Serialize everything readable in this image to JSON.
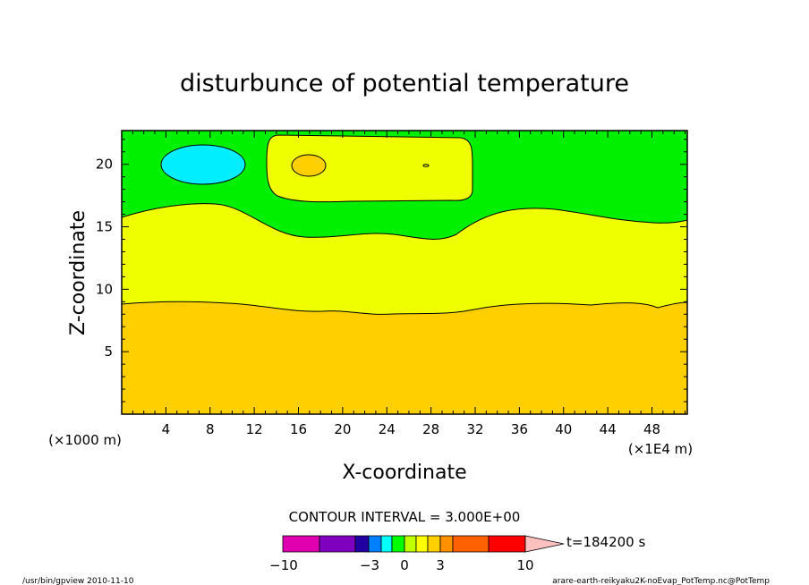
{
  "chart_data": {
    "type": "contour",
    "title": "disturbunce of potential temperature",
    "xlabel": "X-coordinate",
    "ylabel": "Z-coordinate",
    "x_unit_left": "(×1000 m)",
    "x_unit_right": "(×1E4 m)",
    "xlim": [
      0,
      51.2
    ],
    "ylim": [
      0,
      22.7
    ],
    "x_ticks": [
      "4",
      "8",
      "12",
      "16",
      "20",
      "24",
      "28",
      "32",
      "36",
      "40",
      "44",
      "48"
    ],
    "y_ticks": [
      "5",
      "10",
      "15",
      "20"
    ],
    "contour_interval": "CONTOUR INTERVAL = 3.000E+00",
    "time_label": "t=184200 s",
    "colorbar_labels": [
      "−10",
      "−3",
      "0",
      "3",
      "10"
    ],
    "colorbar_colors": [
      "#e000b0",
      "#8000c0",
      "#2000a0",
      "#0000ff",
      "#0080ff",
      "#00ffff",
      "#00ff00",
      "#c0ff00",
      "#ffff00",
      "#ffd000",
      "#ff9000",
      "#ff6000",
      "#ff0000",
      "#ff8080",
      "#ffc0c0"
    ],
    "region_colors": {
      "bottom": "#ffcf00",
      "middle": "#f0ff00",
      "upper": "#00f000",
      "cold_blob": "#00eeff",
      "warm_patch": "#f0ff00",
      "warm_core": "#ffcf00"
    },
    "features": [
      {
        "name": "cold_blob",
        "x_center": 7.5,
        "z_center": 20.0
      },
      {
        "name": "warm_patch",
        "x_range": [
          13.5,
          31.5
        ],
        "z_range": [
          17.1,
          22.5
        ]
      },
      {
        "name": "warm_core",
        "x_center": 17.0,
        "z_center": 20.0
      }
    ]
  },
  "footer": {
    "left": "/usr/bin/gpview   2010-11-10",
    "right": "arare-earth-reikyaku2K-noEvap_PotTemp.nc@PotTemp"
  }
}
